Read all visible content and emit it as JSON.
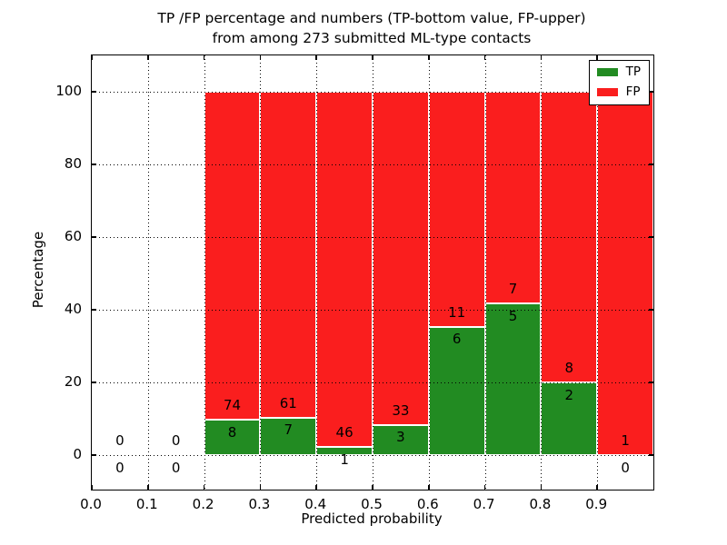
{
  "chart_data": {
    "type": "bar",
    "stacked": true,
    "title_line1": "TP /FP percentage and numbers (TP-bottom value, FP-upper)",
    "title_line2": "from among 273 submitted ML-type contacts",
    "xlabel": "Predicted probability",
    "ylabel": "Percentage",
    "total_submitted_contacts": 273,
    "grid": true,
    "legend_position": "upper right",
    "xlim": [
      0.0,
      1.0
    ],
    "ylim": [
      -9.5,
      110
    ],
    "colors": {
      "tp": "#228b22",
      "fp": "#fa1e1e"
    },
    "x_ticks": [
      {
        "v": 0.0,
        "label": "0.0"
      },
      {
        "v": 0.1,
        "label": "0.1"
      },
      {
        "v": 0.2,
        "label": "0.2"
      },
      {
        "v": 0.3,
        "label": "0.3"
      },
      {
        "v": 0.4,
        "label": "0.4"
      },
      {
        "v": 0.5,
        "label": "0.5"
      },
      {
        "v": 0.6,
        "label": "0.6"
      },
      {
        "v": 0.7,
        "label": "0.7"
      },
      {
        "v": 0.8,
        "label": "0.8"
      },
      {
        "v": 0.9,
        "label": "0.9"
      }
    ],
    "y_ticks": [
      {
        "v": 0,
        "label": "0"
      },
      {
        "v": 20,
        "label": "20"
      },
      {
        "v": 40,
        "label": "40"
      },
      {
        "v": 60,
        "label": "60"
      },
      {
        "v": 80,
        "label": "80"
      },
      {
        "v": 100,
        "label": "100"
      }
    ],
    "bins": [
      {
        "range": "0.0-0.1",
        "x_start": 0.0,
        "tp": 0,
        "fp": 0,
        "tp_pct": 0,
        "fp_pct": 0,
        "has_bar": false
      },
      {
        "range": "0.1-0.2",
        "x_start": 0.1,
        "tp": 0,
        "fp": 0,
        "tp_pct": 0,
        "fp_pct": 0,
        "has_bar": false
      },
      {
        "range": "0.2-0.3",
        "x_start": 0.2,
        "tp": 8,
        "fp": 74,
        "tp_pct": 9.76,
        "fp_pct": 90.24,
        "has_bar": true
      },
      {
        "range": "0.3-0.4",
        "x_start": 0.3,
        "tp": 7,
        "fp": 61,
        "tp_pct": 10.29,
        "fp_pct": 89.71,
        "has_bar": true
      },
      {
        "range": "0.4-0.5",
        "x_start": 0.4,
        "tp": 1,
        "fp": 46,
        "tp_pct": 2.13,
        "fp_pct": 97.87,
        "has_bar": true
      },
      {
        "range": "0.5-0.6",
        "x_start": 0.5,
        "tp": 3,
        "fp": 33,
        "tp_pct": 8.33,
        "fp_pct": 91.67,
        "has_bar": true
      },
      {
        "range": "0.6-0.7",
        "x_start": 0.6,
        "tp": 6,
        "fp": 11,
        "tp_pct": 35.29,
        "fp_pct": 64.71,
        "has_bar": true
      },
      {
        "range": "0.7-0.8",
        "x_start": 0.7,
        "tp": 5,
        "fp": 7,
        "tp_pct": 41.67,
        "fp_pct": 58.33,
        "has_bar": true
      },
      {
        "range": "0.8-0.9",
        "x_start": 0.8,
        "tp": 2,
        "fp": 8,
        "tp_pct": 20.0,
        "fp_pct": 80.0,
        "has_bar": true
      },
      {
        "range": "0.9-1.0",
        "x_start": 0.9,
        "tp": 0,
        "fp": 1,
        "tp_pct": 0.0,
        "fp_pct": 100.0,
        "has_bar": true
      }
    ],
    "legend": [
      {
        "label": "TP",
        "color": "#228b22"
      },
      {
        "label": "FP",
        "color": "#fa1e1e"
      }
    ]
  }
}
